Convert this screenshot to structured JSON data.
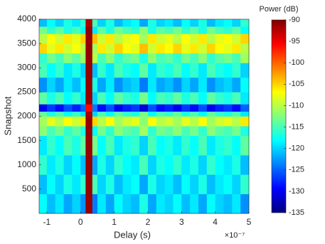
{
  "chart_data": {
    "type": "heatmap",
    "xlabel": "Delay (s)",
    "ylabel": "Snapshot",
    "x_multiplier_label": "×10⁻⁷",
    "colorbar_label": "Power (dB)",
    "colormap": "jet",
    "xlim": [
      -1.23,
      5
    ],
    "xticks": [
      -1,
      0,
      1,
      2,
      3,
      4,
      5
    ],
    "ylim": [
      0,
      4000
    ],
    "yticks": [
      500,
      1000,
      1500,
      2000,
      2500,
      3000,
      3500,
      4000
    ],
    "clim": [
      -135,
      -90
    ],
    "cticks": [
      -135,
      -130,
      -125,
      -120,
      -115,
      -110,
      -105,
      -100,
      -95,
      -90
    ],
    "xbins": [
      -1.23,
      -1,
      -0.75,
      -0.5,
      -0.25,
      0,
      0.15,
      0.35,
      0.5,
      0.75,
      1,
      1.25,
      1.5,
      1.75,
      2,
      2.25,
      2.5,
      2.75,
      3,
      3.25,
      3.5,
      3.75,
      4,
      4.25,
      4.5,
      4.75,
      5
    ],
    "ybins": [
      0,
      400,
      800,
      1200,
      1600,
      1800,
      2000,
      2100,
      2250,
      2500,
      2800,
      3100,
      3300,
      3500,
      3700,
      3850,
      4000
    ],
    "z": [
      [
        -118,
        -121,
        -119,
        -122,
        -120,
        -123,
        -91,
        -124,
        -119,
        -122,
        -118,
        -120,
        -121,
        -117,
        -122,
        -119,
        -120,
        -118,
        -121,
        -119,
        -122,
        -118,
        -120,
        -121,
        -119,
        -123
      ],
      [
        -121,
        -118,
        -120,
        -117,
        -119,
        -116,
        -91,
        -115,
        -120,
        -117,
        -121,
        -119,
        -118,
        -122,
        -117,
        -120,
        -119,
        -121,
        -118,
        -120,
        -117,
        -121,
        -119,
        -118,
        -120,
        -116
      ],
      [
        -116,
        -119,
        -117,
        -120,
        -118,
        -121,
        -91,
        -122,
        -117,
        -120,
        -116,
        -118,
        -119,
        -115,
        -120,
        -117,
        -118,
        -116,
        -119,
        -117,
        -120,
        -116,
        -118,
        -119,
        -117,
        -121
      ],
      [
        -119,
        -116,
        -118,
        -115,
        -117,
        -114,
        -91,
        -113,
        -118,
        -115,
        -119,
        -117,
        -116,
        -120,
        -115,
        -118,
        -117,
        -119,
        -116,
        -118,
        -115,
        -119,
        -117,
        -116,
        -118,
        -114
      ],
      [
        -112,
        -115,
        -113,
        -116,
        -114,
        -117,
        -91,
        -118,
        -113,
        -116,
        -112,
        -114,
        -115,
        -111,
        -116,
        -113,
        -114,
        -112,
        -115,
        -113,
        -116,
        -112,
        -114,
        -115,
        -113,
        -117
      ],
      [
        -111,
        -108,
        -110,
        -107,
        -109,
        -106,
        -91,
        -105,
        -110,
        -107,
        -111,
        -109,
        -108,
        -112,
        -107,
        -110,
        -109,
        -111,
        -108,
        -110,
        -107,
        -111,
        -109,
        -108,
        -110,
        -106
      ],
      [
        -114,
        -117,
        -115,
        -118,
        -116,
        -119,
        -92,
        -120,
        -115,
        -118,
        -114,
        -116,
        -117,
        -113,
        -118,
        -115,
        -116,
        -114,
        -117,
        -115,
        -118,
        -114,
        -116,
        -117,
        -115,
        -119
      ],
      [
        -130,
        -127,
        -129,
        -126,
        -128,
        -125,
        -96,
        -124,
        -129,
        -126,
        -130,
        -128,
        -127,
        -131,
        -126,
        -129,
        -128,
        -130,
        -127,
        -129,
        -126,
        -130,
        -128,
        -127,
        -129,
        -125
      ],
      [
        -114,
        -117,
        -115,
        -118,
        -116,
        -119,
        -91,
        -120,
        -115,
        -118,
        -114,
        -116,
        -117,
        -113,
        -118,
        -115,
        -116,
        -114,
        -117,
        -115,
        -118,
        -114,
        -116,
        -117,
        -115,
        -119
      ],
      [
        -123,
        -120,
        -122,
        -119,
        -121,
        -118,
        -91,
        -117,
        -122,
        -119,
        -123,
        -121,
        -120,
        -124,
        -119,
        -122,
        -121,
        -123,
        -120,
        -122,
        -119,
        -123,
        -121,
        -120,
        -122,
        -118
      ],
      [
        -115,
        -118,
        -116,
        -119,
        -117,
        -120,
        -91,
        -121,
        -116,
        -119,
        -115,
        -117,
        -118,
        -114,
        -119,
        -116,
        -117,
        -115,
        -118,
        -116,
        -119,
        -115,
        -117,
        -118,
        -116,
        -120
      ],
      [
        -116,
        -113,
        -115,
        -112,
        -114,
        -111,
        -91,
        -110,
        -115,
        -112,
        -116,
        -114,
        -113,
        -117,
        -112,
        -115,
        -114,
        -116,
        -113,
        -115,
        -112,
        -116,
        -114,
        -113,
        -115,
        -111
      ],
      [
        -105,
        -108,
        -106,
        -109,
        -107,
        -110,
        -91,
        -111,
        -106,
        -109,
        -105,
        -107,
        -108,
        -104,
        -109,
        -106,
        -107,
        -105,
        -108,
        -106,
        -109,
        -105,
        -107,
        -108,
        -106,
        -110
      ],
      [
        -110,
        -107,
        -109,
        -106,
        -108,
        -105,
        -91,
        -104,
        -109,
        -106,
        -110,
        -108,
        -107,
        -111,
        -106,
        -109,
        -108,
        -110,
        -107,
        -109,
        -106,
        -110,
        -108,
        -107,
        -109,
        -105
      ],
      [
        -113,
        -116,
        -114,
        -117,
        -115,
        -118,
        -91,
        -119,
        -114,
        -117,
        -113,
        -115,
        -116,
        -112,
        -117,
        -114,
        -115,
        -113,
        -116,
        -114,
        -117,
        -113,
        -115,
        -116,
        -114,
        -118
      ],
      [
        -121,
        -118,
        -120,
        -117,
        -119,
        -116,
        -92,
        -115,
        -120,
        -117,
        -121,
        -119,
        -118,
        -122,
        -117,
        -120,
        -119,
        -121,
        -118,
        -120,
        -117,
        -121,
        -119,
        -118,
        -120,
        -116
      ]
    ]
  }
}
